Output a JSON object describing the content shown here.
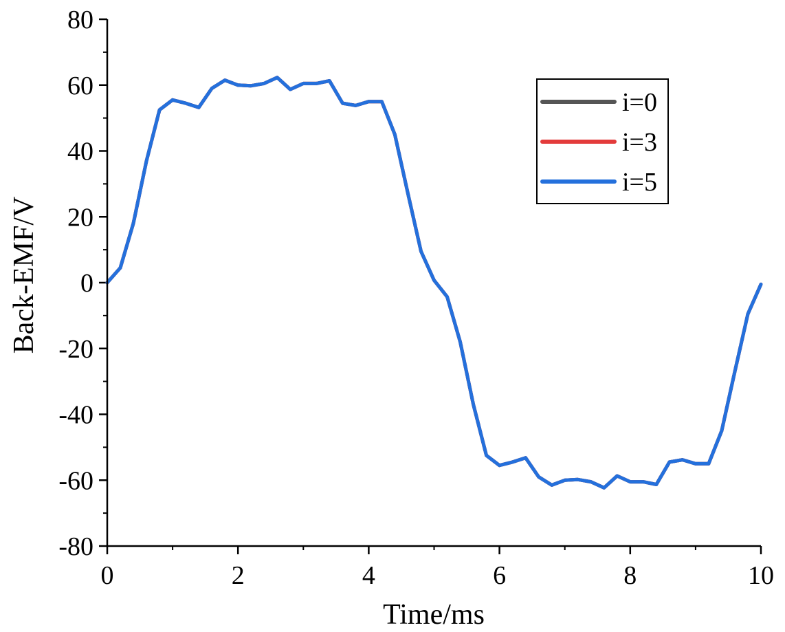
{
  "chart_data": {
    "type": "line",
    "xlabel": "Time/ms",
    "ylabel": "Back-EMF/V",
    "xlim": [
      0,
      10
    ],
    "ylim": [
      -80,
      80
    ],
    "xticks": [
      0,
      2,
      4,
      6,
      8,
      10
    ],
    "yticks": [
      -80,
      -60,
      -40,
      -20,
      0,
      20,
      40,
      60,
      80
    ],
    "x_tick_labels": [
      "0",
      "2",
      "4",
      "6",
      "8",
      "10"
    ],
    "y_tick_labels": [
      "-80",
      "-60",
      "-40",
      "-20",
      "0",
      "20",
      "40",
      "60",
      "80"
    ],
    "grid": false,
    "legend_position": "top-right",
    "x": [
      0,
      0.2,
      0.4,
      0.6,
      0.8,
      1.0,
      1.2,
      1.4,
      1.6,
      1.8,
      2.0,
      2.2,
      2.4,
      2.6,
      2.8,
      3.0,
      3.2,
      3.4,
      3.6,
      3.8,
      4.0,
      4.2,
      4.4,
      4.6,
      4.8,
      5.0,
      5.2,
      5.4,
      5.6,
      5.8,
      6.0,
      6.2,
      6.4,
      6.6,
      6.8,
      7.0,
      7.2,
      7.4,
      7.6,
      7.8,
      8.0,
      8.2,
      8.4,
      8.6,
      8.8,
      9.0,
      9.2,
      9.4,
      9.6,
      9.8,
      10.0
    ],
    "series": [
      {
        "name": "i=0",
        "color": "#555555",
        "values": [
          0,
          4.5,
          18,
          37,
          52.5,
          55.5,
          54.5,
          53.2,
          59,
          61.5,
          60,
          59.8,
          60.5,
          62.3,
          58.7,
          60.5,
          60.5,
          61.3,
          54.5,
          53.8,
          55,
          55,
          45,
          27,
          9.5,
          0.7,
          -4.3,
          -18,
          -37,
          -52.5,
          -55.5,
          -54.5,
          -53.2,
          -59,
          -61.5,
          -60,
          -59.8,
          -60.5,
          -62.3,
          -58.7,
          -60.5,
          -60.5,
          -61.3,
          -54.5,
          -53.8,
          -55,
          -55,
          -45,
          -27,
          -9.5,
          -0.5
        ]
      },
      {
        "name": "i=3",
        "color": "#e33b3b",
        "values": [
          0,
          4.5,
          18,
          37,
          52.5,
          55.5,
          54.5,
          53.2,
          59,
          61.5,
          60,
          59.8,
          60.5,
          62.3,
          58.7,
          60.5,
          60.5,
          61.3,
          54.5,
          53.8,
          55,
          55,
          45,
          27,
          9.5,
          0.7,
          -4.3,
          -18,
          -37,
          -52.5,
          -55.5,
          -54.5,
          -53.2,
          -59,
          -61.5,
          -60,
          -59.8,
          -60.5,
          -62.3,
          -58.7,
          -60.5,
          -60.5,
          -61.3,
          -54.5,
          -53.8,
          -55,
          -55,
          -45,
          -27,
          -9.5,
          -0.5
        ]
      },
      {
        "name": "i=5",
        "color": "#2470dc",
        "values": [
          0,
          4.5,
          18,
          37,
          52.5,
          55.5,
          54.5,
          53.2,
          59,
          61.5,
          60,
          59.8,
          60.5,
          62.3,
          58.7,
          60.5,
          60.5,
          61.3,
          54.5,
          53.8,
          55,
          55,
          45,
          27,
          9.5,
          0.7,
          -4.3,
          -18,
          -37,
          -52.5,
          -55.5,
          -54.5,
          -53.2,
          -59,
          -61.5,
          -60,
          -59.8,
          -60.5,
          -62.3,
          -58.7,
          -60.5,
          -60.5,
          -61.3,
          -54.5,
          -53.8,
          -55,
          -55,
          -45,
          -27,
          -9.5,
          -0.5
        ]
      }
    ]
  }
}
